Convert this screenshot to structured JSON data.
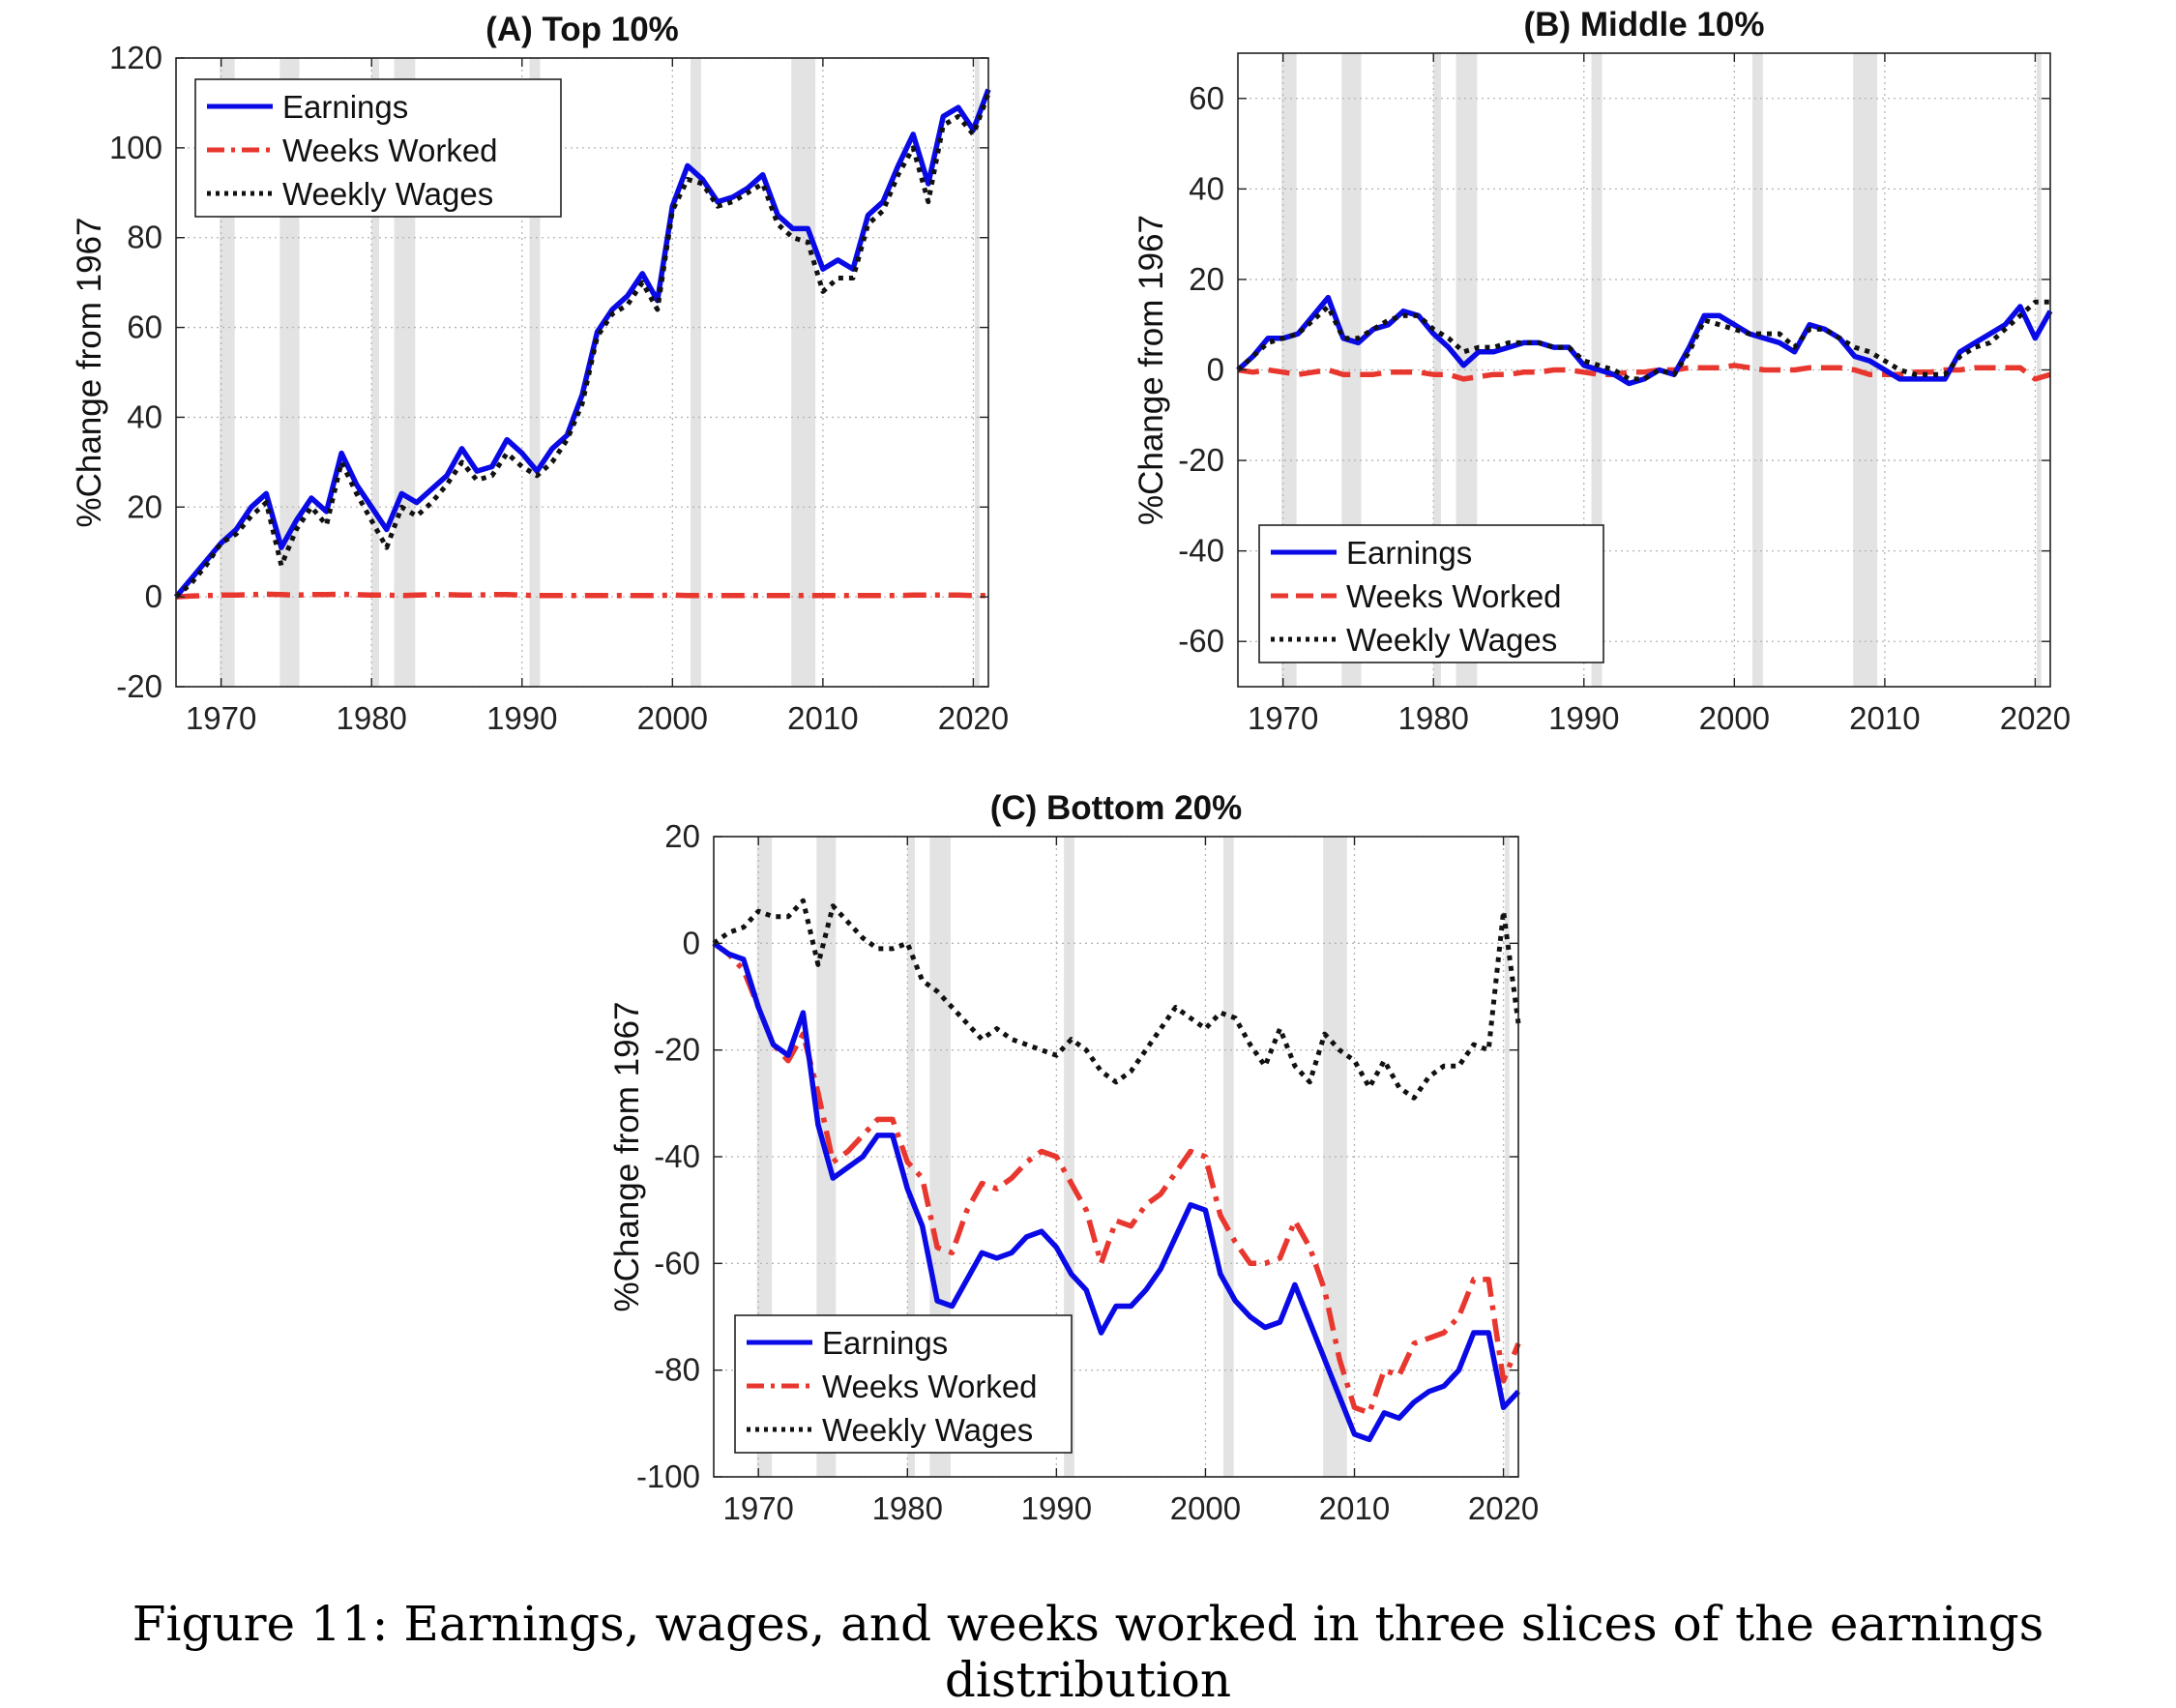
{
  "figure": {
    "caption": "Figure 11: Earnings, wages, and weeks worked in three slices of the earnings distribution"
  },
  "colors": {
    "earnings": "#0a0ae6",
    "weeks": "#e8372e",
    "wages": "#111111",
    "recession": "#e3e3e3",
    "grid": "#b5b5b5"
  },
  "recessions": [
    [
      1969.9,
      1970.9
    ],
    [
      1973.9,
      1975.2
    ],
    [
      1980.0,
      1980.5
    ],
    [
      1981.5,
      1982.9
    ],
    [
      1990.5,
      1991.2
    ],
    [
      2001.2,
      2001.9
    ],
    [
      2007.9,
      2009.5
    ],
    [
      2020.1,
      2020.4
    ]
  ],
  "chart_data": [
    {
      "id": "A",
      "type": "line",
      "title": "(A) Top 10%",
      "xlabel": "",
      "ylabel": "%Change from 1967",
      "xlim": [
        1967,
        2021
      ],
      "ylim": [
        -20,
        120
      ],
      "xticks": [
        1970,
        1980,
        1990,
        2000,
        2010,
        2020
      ],
      "yticks": [
        -20,
        0,
        20,
        40,
        60,
        80,
        100,
        120
      ],
      "grid": true,
      "legend": "top-left",
      "x": [
        1967,
        1968,
        1969,
        1970,
        1971,
        1972,
        1973,
        1974,
        1975,
        1976,
        1977,
        1978,
        1979,
        1980,
        1981,
        1982,
        1983,
        1984,
        1985,
        1986,
        1987,
        1988,
        1989,
        1990,
        1991,
        1992,
        1993,
        1994,
        1995,
        1996,
        1997,
        1998,
        1999,
        2000,
        2001,
        2002,
        2003,
        2004,
        2005,
        2006,
        2007,
        2008,
        2009,
        2010,
        2011,
        2012,
        2013,
        2014,
        2015,
        2016,
        2017,
        2018,
        2019,
        2020,
        2021
      ],
      "series": [
        {
          "name": "Earnings",
          "key": "earnings",
          "dash": "solid",
          "values": [
            0,
            4,
            8,
            12,
            15,
            20,
            23,
            11,
            17,
            22,
            19,
            32,
            25,
            20,
            15,
            23,
            21,
            24,
            27,
            33,
            28,
            29,
            35,
            32,
            28,
            33,
            36,
            45,
            59,
            64,
            67,
            72,
            66,
            87,
            96,
            93,
            88,
            89,
            91,
            94,
            85,
            82,
            82,
            73,
            75,
            73,
            85,
            88,
            96,
            103,
            92,
            107,
            109,
            104,
            113
          ]
        },
        {
          "name": "Weeks Worked",
          "key": "weeks",
          "dash": "dashdot",
          "values": [
            0,
            0.2,
            0.3,
            0.4,
            0.4,
            0.5,
            0.6,
            0.5,
            0.4,
            0.5,
            0.5,
            0.6,
            0.5,
            0.4,
            0.4,
            0.3,
            0.4,
            0.5,
            0.5,
            0.4,
            0.4,
            0.5,
            0.5,
            0.4,
            0.3,
            0.3,
            0.3,
            0.3,
            0.3,
            0.3,
            0.3,
            0.3,
            0.3,
            0.4,
            0.3,
            0.3,
            0.3,
            0.3,
            0.3,
            0.3,
            0.3,
            0.3,
            0.3,
            0.3,
            0.3,
            0.3,
            0.3,
            0.3,
            0.3,
            0.4,
            0.4,
            0.4,
            0.4,
            0.3,
            0.3
          ]
        },
        {
          "name": "Weekly Wages",
          "key": "wages",
          "dash": "dotted",
          "values": [
            0,
            3,
            7,
            12,
            14,
            18,
            21,
            7,
            15,
            20,
            16,
            30,
            23,
            17,
            11,
            20,
            18,
            21,
            25,
            30,
            26,
            27,
            32,
            29,
            27,
            30,
            35,
            43,
            58,
            63,
            65,
            70,
            64,
            86,
            93,
            92,
            87,
            88,
            90,
            92,
            83,
            80,
            79,
            68,
            71,
            71,
            83,
            86,
            94,
            100,
            88,
            105,
            107,
            103,
            112
          ]
        }
      ],
      "legend_entries": [
        "Earnings",
        "Weeks Worked",
        "Weekly Wages"
      ]
    },
    {
      "id": "B",
      "type": "line",
      "title": "(B) Middle 10%",
      "xlabel": "",
      "ylabel": "%Change from 1967",
      "xlim": [
        1967,
        2021
      ],
      "ylim": [
        -70,
        70
      ],
      "xticks": [
        1970,
        1980,
        1990,
        2000,
        2010,
        2020
      ],
      "yticks": [
        -60,
        -40,
        -20,
        0,
        20,
        40,
        60
      ],
      "grid": true,
      "legend": "bottom-left",
      "x": [
        1967,
        1968,
        1969,
        1970,
        1971,
        1972,
        1973,
        1974,
        1975,
        1976,
        1977,
        1978,
        1979,
        1980,
        1981,
        1982,
        1983,
        1984,
        1985,
        1986,
        1987,
        1988,
        1989,
        1990,
        1991,
        1992,
        1993,
        1994,
        1995,
        1996,
        1997,
        1998,
        1999,
        2000,
        2001,
        2002,
        2003,
        2004,
        2005,
        2006,
        2007,
        2008,
        2009,
        2010,
        2011,
        2012,
        2013,
        2014,
        2015,
        2016,
        2017,
        2018,
        2019,
        2020,
        2021
      ],
      "series": [
        {
          "name": "Earnings",
          "key": "earnings",
          "dash": "solid",
          "values": [
            0,
            3,
            7,
            7,
            8,
            12,
            16,
            7,
            6,
            9,
            10,
            13,
            12,
            8,
            5,
            1,
            4,
            4,
            5,
            6,
            6,
            5,
            5,
            1,
            0,
            -1,
            -3,
            -2,
            0,
            -1,
            5,
            12,
            12,
            10,
            8,
            7,
            6,
            4,
            10,
            9,
            7,
            3,
            2,
            0,
            -2,
            -2,
            -2,
            -2,
            4,
            6,
            8,
            10,
            14,
            7,
            13
          ]
        },
        {
          "name": "Weeks Worked",
          "key": "weeks",
          "dash": "dashed",
          "values": [
            0,
            -0.5,
            0,
            -0.5,
            -1,
            -0.5,
            0,
            -1,
            -1,
            -1,
            -0.5,
            -0.5,
            -0.5,
            -1,
            -1,
            -2,
            -1.5,
            -1,
            -1,
            -0.5,
            -0.5,
            0,
            0,
            -0.5,
            -1,
            -1,
            -0.5,
            -0.5,
            0,
            0,
            0.5,
            0.5,
            0.5,
            1,
            0.5,
            0,
            0,
            0,
            0.5,
            0.5,
            0.5,
            0,
            -1,
            -1,
            -1,
            -0.5,
            -0.5,
            0,
            0,
            0.5,
            0.5,
            0.5,
            0.5,
            -2,
            -1
          ]
        },
        {
          "name": "Weekly Wages",
          "key": "wages",
          "dash": "dotted",
          "values": [
            0,
            3,
            6,
            7,
            8,
            11,
            14,
            7,
            7,
            9,
            11,
            12,
            12,
            9,
            7,
            4,
            5,
            5,
            6,
            6,
            6,
            5,
            5,
            2,
            1,
            0,
            -2,
            -2,
            0,
            -1,
            4,
            11,
            10,
            9,
            8,
            8,
            8,
            5,
            9,
            9,
            7,
            5,
            4,
            2,
            0,
            -1,
            -1,
            -1,
            3,
            5,
            6,
            9,
            12,
            15,
            15
          ]
        }
      ],
      "legend_entries": [
        "Earnings",
        "Weeks Worked",
        "Weekly Wages"
      ]
    },
    {
      "id": "C",
      "type": "line",
      "title": "(C) Bottom 20%",
      "xlabel": "",
      "ylabel": "%Change from 1967",
      "xlim": [
        1967,
        2021
      ],
      "ylim": [
        -100,
        20
      ],
      "xticks": [
        1970,
        1980,
        1990,
        2000,
        2010,
        2020
      ],
      "yticks": [
        -100,
        -80,
        -60,
        -40,
        -20,
        0,
        20
      ],
      "grid": true,
      "legend": "bottom-left",
      "x": [
        1967,
        1968,
        1969,
        1970,
        1971,
        1972,
        1973,
        1974,
        1975,
        1976,
        1977,
        1978,
        1979,
        1980,
        1981,
        1982,
        1983,
        1984,
        1985,
        1986,
        1987,
        1988,
        1989,
        1990,
        1991,
        1992,
        1993,
        1994,
        1995,
        1996,
        1997,
        1998,
        1999,
        2000,
        2001,
        2002,
        2003,
        2004,
        2005,
        2006,
        2007,
        2008,
        2009,
        2010,
        2011,
        2012,
        2013,
        2014,
        2015,
        2016,
        2017,
        2018,
        2019,
        2020,
        2021
      ],
      "series": [
        {
          "name": "Earnings",
          "key": "earnings",
          "dash": "solid",
          "values": [
            0,
            -2,
            -3,
            -12,
            -19,
            -21,
            -13,
            -34,
            -44,
            -42,
            -40,
            -36,
            -36,
            -46,
            -53,
            -67,
            -68,
            -63,
            -58,
            -59,
            -58,
            -55,
            -54,
            -57,
            -62,
            -65,
            -73,
            -68,
            -68,
            -65,
            -61,
            -55,
            -49,
            -50,
            -62,
            -67,
            -70,
            -72,
            -71,
            -64,
            -71,
            -78,
            -85,
            -92,
            -93,
            -88,
            -89,
            -86,
            -84,
            -83,
            -80,
            -73,
            -73,
            -87,
            -84
          ]
        },
        {
          "name": "Weeks Worked",
          "key": "weeks",
          "dash": "dashdot",
          "values": [
            0,
            -2,
            -5,
            -12,
            -19,
            -22,
            -17,
            -28,
            -41,
            -39,
            -36,
            -33,
            -33,
            -41,
            -44,
            -57,
            -58,
            -50,
            -45,
            -46,
            -44,
            -41,
            -39,
            -40,
            -45,
            -50,
            -60,
            -52,
            -53,
            -49,
            -47,
            -43,
            -39,
            -40,
            -51,
            -56,
            -60,
            -60,
            -59,
            -52,
            -57,
            -65,
            -78,
            -87,
            -88,
            -80,
            -81,
            -75,
            -74,
            -73,
            -70,
            -63,
            -63,
            -82,
            -75
          ]
        },
        {
          "name": "Weekly Wages",
          "key": "wages",
          "dash": "dotted",
          "values": [
            0,
            2,
            3,
            6,
            5,
            5,
            8,
            -4,
            7,
            4,
            1,
            -1,
            -1,
            0,
            -7,
            -9,
            -12,
            -15,
            -18,
            -16,
            -18,
            -19,
            -20,
            -21,
            -18,
            -20,
            -24,
            -26,
            -24,
            -20,
            -16,
            -12,
            -14,
            -16,
            -13,
            -14,
            -19,
            -23,
            -16,
            -23,
            -26,
            -17,
            -20,
            -22,
            -27,
            -22,
            -27,
            -29,
            -25,
            -23,
            -23,
            -19,
            -20,
            6,
            -15
          ]
        }
      ],
      "legend_entries": [
        "Earnings",
        "Weeks Worked",
        "Weekly Wages"
      ]
    }
  ]
}
